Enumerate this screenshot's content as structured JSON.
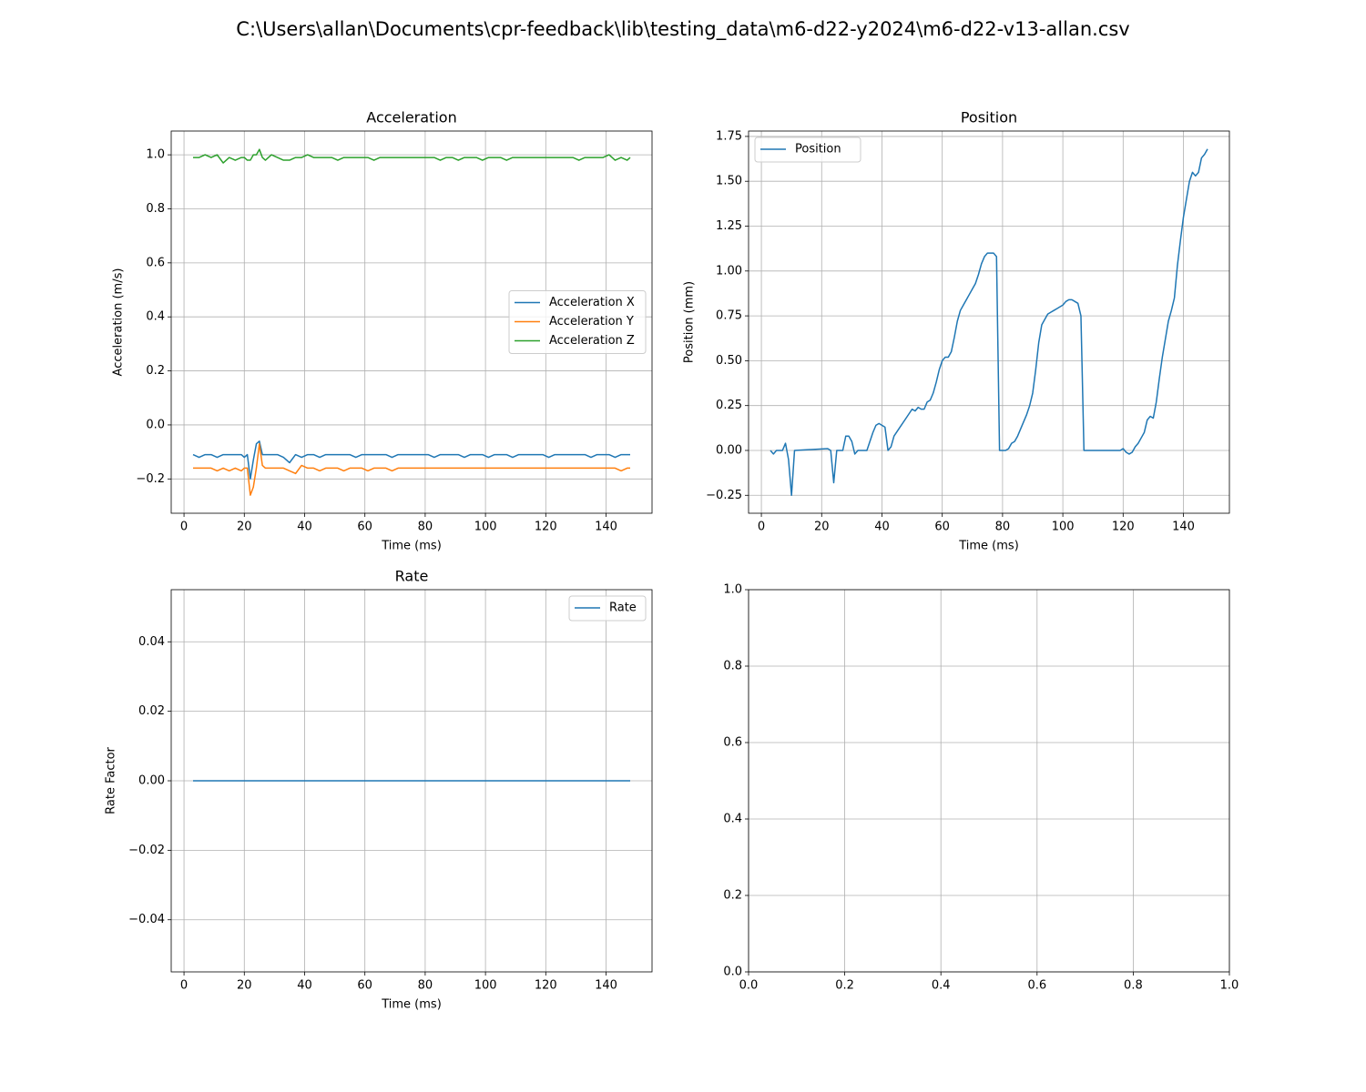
{
  "title": "C:\\Users\\allan\\Documents\\cpr-feedback\\lib\\testing_data\\m6-d22-y2024\\m6-d22-v13-allan.csv",
  "chart_data": [
    {
      "type": "line",
      "title": "Acceleration",
      "xlabel": "Time (ms)",
      "ylabel": "Acceleration (m/s)",
      "grid": true,
      "legend": "center right",
      "xlim": [
        -4.25,
        155.25
      ],
      "ylim": [
        -0.327,
        1.088
      ],
      "xticks": [
        0,
        20,
        40,
        60,
        80,
        100,
        120,
        140
      ],
      "yticks": [
        {
          "value": -0.2,
          "label": "−0.2"
        },
        {
          "value": 0,
          "label": "0.0"
        },
        0.2,
        0.4,
        0.6,
        0.8,
        {
          "value": 1,
          "label": "1.0"
        }
      ],
      "x": [
        3,
        5,
        7,
        9,
        11,
        13,
        15,
        17,
        19,
        20,
        21,
        22,
        23,
        24,
        25,
        26,
        27,
        29,
        31,
        33,
        35,
        37,
        39,
        41,
        43,
        45,
        47,
        49,
        51,
        53,
        55,
        57,
        59,
        61,
        63,
        65,
        67,
        69,
        71,
        73,
        75,
        77,
        79,
        81,
        83,
        85,
        87,
        89,
        91,
        93,
        95,
        97,
        99,
        101,
        103,
        105,
        107,
        109,
        111,
        113,
        115,
        117,
        119,
        121,
        123,
        125,
        127,
        129,
        131,
        133,
        135,
        137,
        139,
        141,
        143,
        145,
        147,
        148
      ],
      "series": [
        {
          "name": "Acceleration X",
          "color": "#1f77b4",
          "values": [
            -0.11,
            -0.12,
            -0.11,
            -0.11,
            -0.12,
            -0.11,
            -0.11,
            -0.11,
            -0.11,
            -0.12,
            -0.11,
            -0.2,
            -0.13,
            -0.07,
            -0.06,
            -0.11,
            -0.11,
            -0.11,
            -0.11,
            -0.12,
            -0.14,
            -0.11,
            -0.12,
            -0.11,
            -0.11,
            -0.12,
            -0.11,
            -0.11,
            -0.11,
            -0.11,
            -0.11,
            -0.12,
            -0.11,
            -0.11,
            -0.11,
            -0.11,
            -0.11,
            -0.12,
            -0.11,
            -0.11,
            -0.11,
            -0.11,
            -0.11,
            -0.11,
            -0.12,
            -0.11,
            -0.11,
            -0.11,
            -0.11,
            -0.12,
            -0.11,
            -0.11,
            -0.11,
            -0.12,
            -0.11,
            -0.11,
            -0.11,
            -0.12,
            -0.11,
            -0.11,
            -0.11,
            -0.11,
            -0.11,
            -0.12,
            -0.11,
            -0.11,
            -0.11,
            -0.11,
            -0.11,
            -0.11,
            -0.12,
            -0.11,
            -0.11,
            -0.11,
            -0.12,
            -0.11,
            -0.11,
            -0.11
          ]
        },
        {
          "name": "Acceleration Y",
          "color": "#ff7f0e",
          "values": [
            -0.16,
            -0.16,
            -0.16,
            -0.16,
            -0.17,
            -0.16,
            -0.17,
            -0.16,
            -0.17,
            -0.16,
            -0.16,
            -0.26,
            -0.23,
            -0.16,
            -0.07,
            -0.15,
            -0.16,
            -0.16,
            -0.16,
            -0.16,
            -0.17,
            -0.18,
            -0.15,
            -0.16,
            -0.16,
            -0.17,
            -0.16,
            -0.16,
            -0.16,
            -0.17,
            -0.16,
            -0.16,
            -0.16,
            -0.17,
            -0.16,
            -0.16,
            -0.16,
            -0.17,
            -0.16,
            -0.16,
            -0.16,
            -0.16,
            -0.16,
            -0.16,
            -0.16,
            -0.16,
            -0.16,
            -0.16,
            -0.16,
            -0.16,
            -0.16,
            -0.16,
            -0.16,
            -0.16,
            -0.16,
            -0.16,
            -0.16,
            -0.16,
            -0.16,
            -0.16,
            -0.16,
            -0.16,
            -0.16,
            -0.16,
            -0.16,
            -0.16,
            -0.16,
            -0.16,
            -0.16,
            -0.16,
            -0.16,
            -0.16,
            -0.16,
            -0.16,
            -0.16,
            -0.17,
            -0.16,
            -0.16
          ]
        },
        {
          "name": "Acceleration Z",
          "color": "#2ca02c",
          "values": [
            0.99,
            0.99,
            1.0,
            0.99,
            1.0,
            0.97,
            0.99,
            0.98,
            0.99,
            0.99,
            0.98,
            0.98,
            1.0,
            1.0,
            1.02,
            0.99,
            0.98,
            1.0,
            0.99,
            0.98,
            0.98,
            0.99,
            0.99,
            1.0,
            0.99,
            0.99,
            0.99,
            0.99,
            0.98,
            0.99,
            0.99,
            0.99,
            0.99,
            0.99,
            0.98,
            0.99,
            0.99,
            0.99,
            0.99,
            0.99,
            0.99,
            0.99,
            0.99,
            0.99,
            0.99,
            0.98,
            0.99,
            0.99,
            0.98,
            0.99,
            0.99,
            0.99,
            0.98,
            0.99,
            0.99,
            0.99,
            0.98,
            0.99,
            0.99,
            0.99,
            0.99,
            0.99,
            0.99,
            0.99,
            0.99,
            0.99,
            0.99,
            0.99,
            0.98,
            0.99,
            0.99,
            0.99,
            0.99,
            1.0,
            0.98,
            0.99,
            0.98,
            0.99
          ]
        }
      ]
    },
    {
      "type": "line",
      "title": "Position",
      "xlabel": "Time (ms)",
      "ylabel": "Position (mm)",
      "grid": true,
      "legend": "upper left",
      "xlim": [
        -4.25,
        155.25
      ],
      "ylim": [
        -0.35,
        1.78
      ],
      "xticks": [
        0,
        20,
        40,
        60,
        80,
        100,
        120,
        140
      ],
      "yticks": [
        {
          "value": -0.25,
          "label": "−0.25"
        },
        {
          "value": 0,
          "label": "0.00"
        },
        0.25,
        {
          "value": 0.5,
          "label": "0.50"
        },
        0.75,
        {
          "value": 1,
          "label": "1.00"
        },
        1.25,
        {
          "value": 1.5,
          "label": "1.50"
        },
        1.75
      ],
      "x": [
        3,
        4,
        5,
        7,
        8,
        9,
        10,
        11,
        22,
        23,
        24,
        25,
        27,
        28,
        29,
        30,
        31,
        32,
        35,
        37,
        38,
        39,
        41,
        42,
        43,
        44,
        46,
        48,
        50,
        51,
        52,
        53,
        54,
        55,
        56,
        57,
        58,
        59,
        60,
        61,
        62,
        63,
        64,
        65,
        66,
        67,
        68,
        69,
        70,
        71,
        72,
        73,
        74,
        75,
        76,
        77,
        78,
        79,
        81,
        82,
        83,
        84,
        85,
        86,
        87,
        88,
        89,
        90,
        91,
        92,
        93,
        94,
        95,
        96,
        97,
        98,
        99,
        100,
        101,
        102,
        103,
        104,
        105,
        106,
        107,
        119,
        120,
        121,
        122,
        123,
        124,
        125,
        126,
        127,
        128,
        129,
        130,
        131,
        132,
        133,
        134,
        135,
        136,
        137,
        138,
        139,
        140,
        141,
        142,
        143,
        144,
        145,
        146,
        147,
        148
      ],
      "series": [
        {
          "name": "Position",
          "color": "#1f77b4",
          "values": [
            0,
            -0.02,
            0,
            0,
            0.04,
            -0.05,
            -0.25,
            0,
            0.01,
            0,
            -0.18,
            0,
            0,
            0.08,
            0.08,
            0.05,
            -0.02,
            0,
            0,
            0.1,
            0.14,
            0.15,
            0.13,
            0,
            0.02,
            0.08,
            0.13,
            0.18,
            0.23,
            0.22,
            0.24,
            0.23,
            0.23,
            0.27,
            0.28,
            0.32,
            0.38,
            0.45,
            0.5,
            0.52,
            0.52,
            0.55,
            0.63,
            0.72,
            0.78,
            0.81,
            0.84,
            0.87,
            0.9,
            0.93,
            0.98,
            1.04,
            1.08,
            1.1,
            1.1,
            1.1,
            1.08,
            0,
            0,
            0.01,
            0.04,
            0.05,
            0.08,
            0.12,
            0.16,
            0.2,
            0.25,
            0.32,
            0.45,
            0.6,
            0.7,
            0.73,
            0.76,
            0.77,
            0.78,
            0.79,
            0.8,
            0.81,
            0.83,
            0.84,
            0.84,
            0.83,
            0.82,
            0.75,
            0,
            0,
            0.01,
            -0.01,
            -0.02,
            -0.01,
            0.02,
            0.04,
            0.07,
            0.1,
            0.17,
            0.19,
            0.18,
            0.27,
            0.4,
            0.52,
            0.62,
            0.72,
            0.78,
            0.85,
            1.03,
            1.17,
            1.3,
            1.4,
            1.5,
            1.55,
            1.53,
            1.55,
            1.63,
            1.65,
            1.68
          ]
        }
      ]
    },
    {
      "type": "line",
      "title": "Rate",
      "xlabel": "Time (ms)",
      "ylabel": "Rate Factor",
      "grid": true,
      "legend": "upper right",
      "xlim": [
        -4.25,
        155.25
      ],
      "ylim": [
        -0.055,
        0.055
      ],
      "xticks": [
        0,
        20,
        40,
        60,
        80,
        100,
        120,
        140
      ],
      "yticks": [
        {
          "value": -0.04,
          "label": "−0.04"
        },
        {
          "value": -0.02,
          "label": "−0.02"
        },
        {
          "value": 0,
          "label": "0.00"
        },
        0.02,
        0.04
      ],
      "x": [
        3,
        148
      ],
      "series": [
        {
          "name": "Rate",
          "color": "#1f77b4",
          "values": [
            0,
            0
          ]
        }
      ]
    },
    {
      "type": "line",
      "grid": true,
      "xlim": [
        0,
        1
      ],
      "ylim": [
        0,
        1
      ],
      "xticks": [
        {
          "value": 0,
          "label": "0.0"
        },
        0.2,
        0.4,
        0.6,
        0.8,
        {
          "value": 1,
          "label": "1.0"
        }
      ],
      "yticks": [
        {
          "value": 0,
          "label": "0.0"
        },
        0.2,
        0.4,
        0.6,
        0.8,
        {
          "value": 1,
          "label": "1.0"
        }
      ],
      "series": []
    }
  ]
}
